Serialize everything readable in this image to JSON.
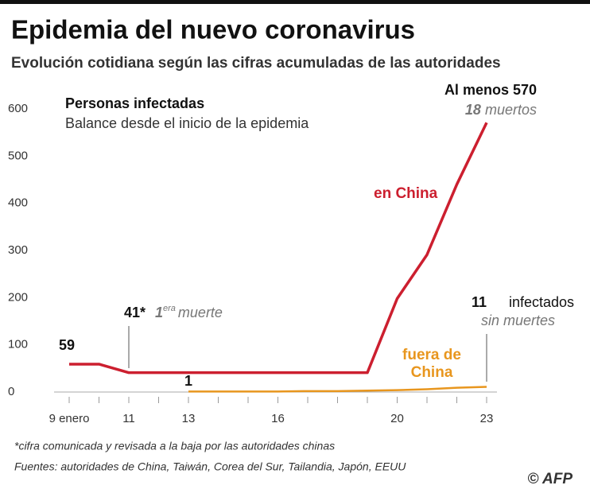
{
  "chart_data": {
    "type": "line",
    "title": "Epidemia del nuevo coronavirus",
    "subtitle": "Evolución cotidiana según las cifras acumuladas de las autoridades",
    "heading": "Personas infectadas",
    "subheading": "Balance desde el inicio de la epidemia",
    "x": [
      9,
      10,
      11,
      12,
      13,
      14,
      15,
      16,
      17,
      18,
      19,
      20,
      21,
      22,
      23
    ],
    "xticks": [
      {
        "value": 9,
        "label": "9 enero"
      },
      11,
      13,
      16,
      20,
      23
    ],
    "xminorticks": [
      9,
      10,
      11,
      12,
      13,
      14,
      15,
      16,
      17,
      18,
      19,
      20,
      21,
      22,
      23
    ],
    "ylim": [
      0,
      600
    ],
    "yticks": [
      0,
      100,
      200,
      300,
      400,
      500,
      600
    ],
    "series": [
      {
        "name": "en China",
        "color": "#cc1f2f",
        "values": [
          59,
          59,
          41,
          41,
          41,
          41,
          41,
          41,
          41,
          41,
          41,
          198,
          291,
          440,
          571
        ],
        "value_labels": [
          null,
          null,
          "41*",
          null,
          null,
          null,
          null,
          null,
          null,
          null,
          null,
          null,
          null,
          null,
          null
        ]
      },
      {
        "name": "fuera de China",
        "color": "#e8961e",
        "values": [
          null,
          null,
          null,
          null,
          1,
          1,
          1,
          1,
          2,
          2,
          3,
          4,
          6,
          9,
          11
        ]
      }
    ],
    "annotations": {
      "china_total": "Al menos 570",
      "deaths_count": "18",
      "deaths_word": "muertos",
      "first_death_num": "1",
      "first_death_sup": "era",
      "first_death_word": "muerte",
      "outside_word": "infectados",
      "outside_deaths": "sin muertes"
    },
    "notes": {
      "footnote": "*cifra comunicada y revisada a la baja por las autoridades chinas",
      "sources": "Fuentes: autoridades de China, Taiwán, Corea del Sur, Tailandia, Japón, EEUU",
      "credit": "© AFP"
    }
  }
}
